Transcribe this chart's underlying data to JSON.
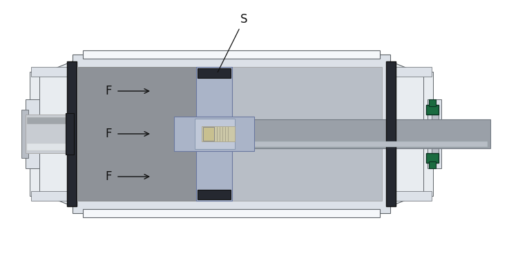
{
  "bg": "#ffffff",
  "lg": "#dce1e8",
  "lg2": "#e8ecf0",
  "mg": "#b8bdc5",
  "dg": "#888e96",
  "vdg": "#3a3d42",
  "chamber_left": "#8e9298",
  "chamber_right": "#b8bec6",
  "piston_blue": "#aab4c8",
  "piston_blue2": "#c0c8d8",
  "rod_col": "#9aa0a8",
  "thread_col": "#ccc8a8",
  "green": "#1a6b40",
  "green2": "#256050",
  "seal": "#252830",
  "white": "#f5f7fa",
  "silver": "#c8ccd2",
  "silver2": "#e0e4e8",
  "outline": "#60656a",
  "label_F": "F",
  "label_S": "S"
}
